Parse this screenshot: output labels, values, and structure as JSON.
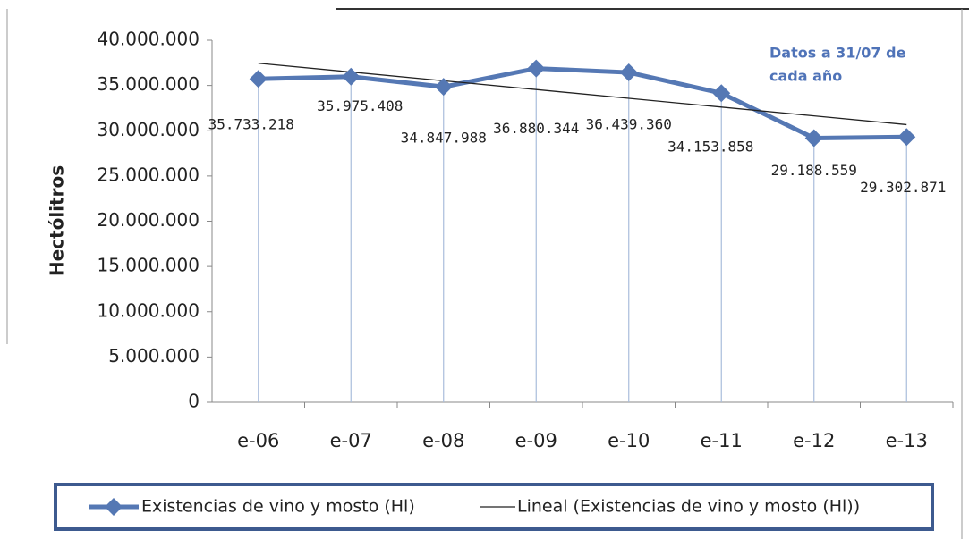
{
  "chart_data": {
    "type": "line",
    "ylabel": "Hectólitros",
    "annotation": [
      "Datos a 31/07 de",
      "cada año"
    ],
    "categories": [
      "e-06",
      "e-07",
      "e-08",
      "e-09",
      "e-10",
      "e-11",
      "e-12",
      "e-13"
    ],
    "series": [
      {
        "name": "Existencias de vino y mosto (Hl)",
        "color": "#5578b4",
        "values": [
          35733218,
          35975408,
          34847988,
          36880344,
          36439360,
          34153858,
          29188559,
          29302871
        ],
        "value_labels": [
          "35.733.218",
          "35.975.408",
          "34.847.988",
          "36.880.344",
          "36.439.360",
          "34.153.858",
          "29.188.559",
          "29.302.871"
        ]
      },
      {
        "name": "Lineal (Existencias de vino y mosto (Hl))",
        "color": "#222222",
        "values": [
          37459000,
          36489000,
          35520000,
          34550000,
          33580000,
          32610000,
          31641000,
          30671000
        ]
      }
    ],
    "ylim": [
      0,
      40000000
    ],
    "yticks": [
      0,
      {
        "value": 5000000,
        "label": "5.000.000"
      },
      {
        "value": 10000000,
        "label": "10.000.000"
      },
      {
        "value": 15000000,
        "label": "15.000.000"
      },
      {
        "value": 20000000,
        "label": "20.000.000"
      },
      {
        "value": 25000000,
        "label": "25.000.000"
      },
      {
        "value": 30000000,
        "label": "30.000.000"
      },
      {
        "value": 35000000,
        "label": "35.000.000"
      },
      {
        "value": 40000000,
        "label": "40.000.000"
      }
    ],
    "drop_lines": true
  }
}
